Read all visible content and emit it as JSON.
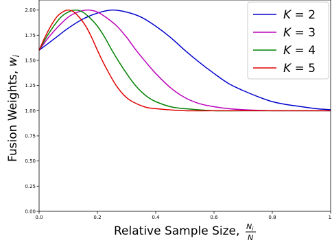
{
  "chart_data": {
    "type": "line",
    "xlabel": "Relative Sample Size, ",
    "xlabel_frac_num": "N",
    "xlabel_frac_num_sub": "i",
    "xlabel_frac_den": "N",
    "ylabel": "Fusion Weights, ",
    "ylabel_var": "w",
    "ylabel_sub": "i",
    "xlim": [
      0,
      1.0
    ],
    "ylim": [
      0,
      2.1
    ],
    "x_ticks": [
      0.0,
      0.2,
      0.4,
      0.6,
      0.8,
      1.0
    ],
    "x_tick_labels": [
      "0.0",
      "0.2",
      "0.4",
      "0.6",
      "0.8",
      "1."
    ],
    "y_ticks": [
      0.0,
      0.25,
      0.5,
      0.75,
      1.0,
      1.25,
      1.5,
      1.75,
      2.0
    ],
    "y_tick_labels": [
      "0.00",
      "0.25",
      "0.50",
      "0.75",
      "1.00",
      "1.25",
      "1.50",
      "1.75",
      "2.00"
    ],
    "legend_position": "top-right",
    "grid": false,
    "series": [
      {
        "name": "K = 2",
        "symbol": "K",
        "value_text": " = 2",
        "color": "#0000cc",
        "x": [
          0,
          0.05,
          0.1,
          0.15,
          0.2,
          0.25,
          0.3,
          0.35,
          0.4,
          0.45,
          0.5,
          0.55,
          0.6,
          0.65,
          0.7,
          0.75,
          0.8,
          0.85,
          0.9,
          0.95,
          1.0
        ],
        "y": [
          1.6,
          1.71,
          1.82,
          1.91,
          1.97,
          2.0,
          1.98,
          1.93,
          1.84,
          1.73,
          1.6,
          1.48,
          1.37,
          1.27,
          1.2,
          1.14,
          1.09,
          1.06,
          1.04,
          1.02,
          1.01
        ]
      },
      {
        "name": "K = 3",
        "symbol": "K",
        "value_text": " = 3",
        "color": "#bb00bb",
        "x": [
          0,
          0.033,
          0.067,
          0.1,
          0.133,
          0.167,
          0.2,
          0.233,
          0.267,
          0.3,
          0.333,
          0.367,
          0.4,
          0.45,
          0.5,
          0.55,
          0.6,
          0.65,
          0.7,
          0.8,
          0.9,
          1.0
        ],
        "y": [
          1.6,
          1.73,
          1.84,
          1.93,
          1.98,
          2.0,
          1.98,
          1.92,
          1.84,
          1.73,
          1.6,
          1.48,
          1.37,
          1.23,
          1.13,
          1.07,
          1.04,
          1.02,
          1.01,
          1.0,
          1.0,
          1.0
        ]
      },
      {
        "name": "K = 4",
        "symbol": "K",
        "value_text": " = 4",
        "color": "#008000",
        "x": [
          0,
          0.025,
          0.05,
          0.075,
          0.1,
          0.125,
          0.15,
          0.175,
          0.2,
          0.225,
          0.25,
          0.275,
          0.3,
          0.325,
          0.35,
          0.375,
          0.4,
          0.45,
          0.5,
          0.6,
          0.7,
          0.8,
          1.0
        ],
        "y": [
          1.6,
          1.73,
          1.84,
          1.93,
          1.98,
          2.0,
          1.98,
          1.92,
          1.84,
          1.73,
          1.6,
          1.48,
          1.37,
          1.27,
          1.19,
          1.13,
          1.09,
          1.04,
          1.02,
          1.0,
          1.0,
          1.0,
          1.0
        ]
      },
      {
        "name": "K = 5",
        "symbol": "K",
        "value_text": " = 5",
        "color": "#e00000",
        "x": [
          0,
          0.02,
          0.04,
          0.06,
          0.08,
          0.1,
          0.12,
          0.14,
          0.16,
          0.18,
          0.2,
          0.22,
          0.24,
          0.26,
          0.28,
          0.3,
          0.32,
          0.36,
          0.4,
          0.5,
          0.6,
          0.8,
          1.0
        ],
        "y": [
          1.6,
          1.73,
          1.84,
          1.93,
          1.98,
          2.0,
          1.98,
          1.92,
          1.84,
          1.73,
          1.6,
          1.48,
          1.37,
          1.27,
          1.19,
          1.13,
          1.09,
          1.04,
          1.02,
          1.0,
          1.0,
          1.0,
          1.0
        ]
      }
    ]
  }
}
